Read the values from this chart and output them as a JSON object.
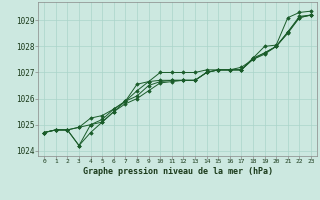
{
  "xlabel": "Graphe pression niveau de la mer (hPa)",
  "background_color": "#cce8e0",
  "grid_color": "#aad4ca",
  "line_color": "#1a5c2a",
  "x_ticks": [
    0,
    1,
    2,
    3,
    4,
    5,
    6,
    7,
    8,
    9,
    10,
    11,
    12,
    13,
    14,
    15,
    16,
    17,
    18,
    19,
    20,
    21,
    22,
    23
  ],
  "ylim": [
    1023.8,
    1029.7
  ],
  "yticks": [
    1024,
    1025,
    1026,
    1027,
    1028,
    1029
  ],
  "series": [
    [
      1024.7,
      1024.8,
      1024.8,
      1024.2,
      1024.7,
      1025.1,
      1025.5,
      1025.9,
      1026.3,
      1026.65,
      1027.0,
      1027.0,
      1027.0,
      1027.0,
      1027.1,
      1027.1,
      1027.1,
      1027.1,
      1027.55,
      1028.0,
      1028.05,
      1029.1,
      1029.3,
      1029.35
    ],
    [
      1024.7,
      1024.8,
      1024.8,
      1024.9,
      1025.0,
      1025.2,
      1025.6,
      1025.9,
      1026.1,
      1026.5,
      1026.65,
      1026.7,
      1026.7,
      1026.7,
      1027.0,
      1027.1,
      1027.1,
      1027.1,
      1027.55,
      1027.75,
      1028.0,
      1028.55,
      1029.1,
      1029.2
    ],
    [
      1024.7,
      1024.8,
      1024.8,
      1024.2,
      1025.0,
      1025.1,
      1025.5,
      1025.8,
      1026.0,
      1026.3,
      1026.6,
      1026.65,
      1026.7,
      1026.7,
      1027.0,
      1027.1,
      1027.1,
      1027.1,
      1027.5,
      1027.7,
      1028.0,
      1028.5,
      1029.1,
      1029.2
    ],
    [
      1024.7,
      1024.8,
      1024.8,
      1024.9,
      1025.25,
      1025.35,
      1025.6,
      1025.9,
      1026.55,
      1026.65,
      1026.7,
      1026.7,
      1026.7,
      1026.7,
      1027.0,
      1027.1,
      1027.1,
      1027.2,
      1027.5,
      1027.75,
      1028.0,
      1028.55,
      1029.15,
      1029.2
    ]
  ]
}
